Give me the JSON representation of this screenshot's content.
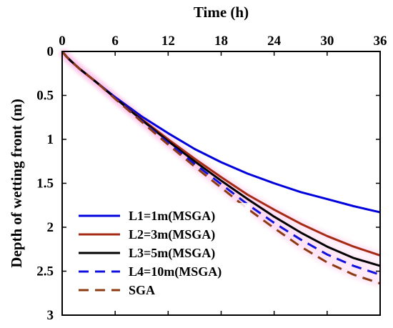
{
  "chart_data": {
    "type": "line",
    "xlabel": "Time (h)",
    "ylabel": "Depth of wetting front (m)",
    "x_axis_position": "top",
    "y_axis_reversed": true,
    "xlim": [
      0,
      36
    ],
    "ylim": [
      0,
      3
    ],
    "xticks": [
      "0",
      "6",
      "12",
      "18",
      "24",
      "30",
      "36"
    ],
    "yticks": [
      "0",
      "0.5",
      "1",
      "1.5",
      "2",
      "2.5",
      "3"
    ],
    "legend_position": "bottom-left",
    "grid": false,
    "x": [
      0,
      0.5,
      1,
      2,
      3,
      4,
      6,
      9,
      12,
      15,
      18,
      21,
      24,
      27,
      30,
      33,
      36
    ],
    "series": [
      {
        "name": "L1=1m(MSGA)",
        "color": "#0000dd",
        "dash": "solid",
        "values": [
          0,
          0.06,
          0.11,
          0.2,
          0.28,
          0.36,
          0.52,
          0.74,
          0.93,
          1.11,
          1.26,
          1.39,
          1.5,
          1.6,
          1.68,
          1.76,
          1.83
        ]
      },
      {
        "name": "L2=3m(MSGA)",
        "color": "#a52a14",
        "dash": "solid",
        "values": [
          0,
          0.06,
          0.11,
          0.2,
          0.28,
          0.36,
          0.53,
          0.77,
          1.0,
          1.22,
          1.43,
          1.63,
          1.8,
          1.96,
          2.1,
          2.22,
          2.32
        ]
      },
      {
        "name": "L3=5m(MSGA)",
        "color": "#000000",
        "dash": "solid",
        "values": [
          0,
          0.06,
          0.11,
          0.2,
          0.28,
          0.36,
          0.53,
          0.78,
          1.02,
          1.25,
          1.47,
          1.68,
          1.88,
          2.06,
          2.22,
          2.35,
          2.44
        ]
      },
      {
        "name": "L4=10m(MSGA)",
        "color": "#1111dd",
        "dash": "dashed",
        "values": [
          0,
          0.06,
          0.11,
          0.2,
          0.28,
          0.36,
          0.53,
          0.79,
          1.04,
          1.28,
          1.51,
          1.74,
          1.95,
          2.14,
          2.31,
          2.44,
          2.54
        ]
      },
      {
        "name": "SGA",
        "color": "#8b3a12",
        "dash": "dashed",
        "values": [
          0,
          0.06,
          0.11,
          0.2,
          0.28,
          0.36,
          0.54,
          0.8,
          1.06,
          1.31,
          1.55,
          1.79,
          2.01,
          2.22,
          2.4,
          2.54,
          2.64
        ]
      }
    ]
  }
}
